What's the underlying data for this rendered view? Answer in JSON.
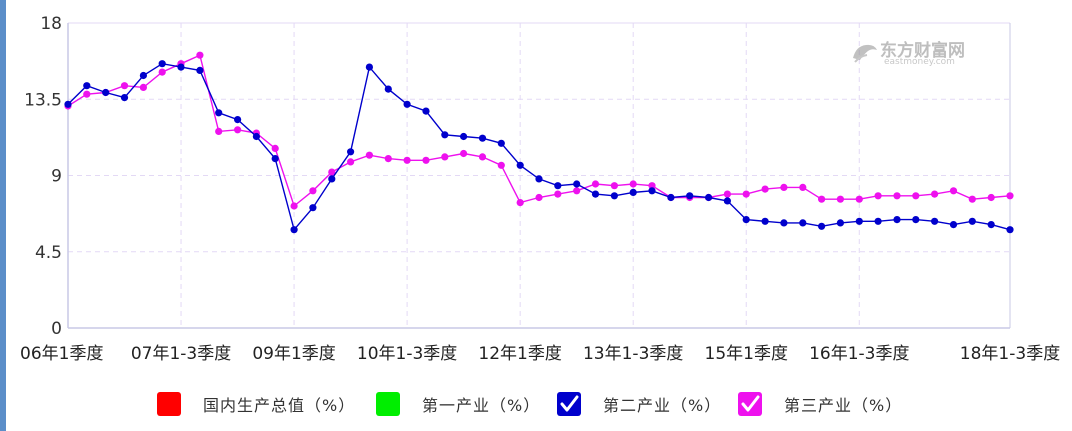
{
  "colors": {
    "gdp": "#ff0000",
    "primary": "#00ee00",
    "secondary": "#0000cc",
    "tertiary": "#ee11ee",
    "grid": "#e3d9f5",
    "axis": "#c9c9e6"
  },
  "watermark": {
    "brand_cn": "东方财富网",
    "brand_en": "eastmoney.com",
    "icon": "eastmoney-bull-logo-icon"
  },
  "legend": [
    {
      "label": "国内生产总值（%）",
      "color": "#ff0000",
      "checked": false
    },
    {
      "label": "第一产业（%）",
      "color": "#00ee00",
      "checked": false
    },
    {
      "label": "第二产业（%）",
      "color": "#0000cc",
      "checked": true
    },
    {
      "label": "第三产业（%）",
      "color": "#ee11ee",
      "checked": true
    }
  ],
  "chart_data": {
    "type": "line",
    "title": "",
    "xlabel": "",
    "ylabel": "",
    "ylim": [
      0,
      18
    ],
    "yticks": [
      "0",
      "4.5",
      "9",
      "13.5",
      "18"
    ],
    "x_tick_labels": [
      {
        "label": "06年1季度",
        "index": 0
      },
      {
        "label": "07年1-3季度",
        "index": 6
      },
      {
        "label": "09年1季度",
        "index": 12
      },
      {
        "label": "10年1-3季度",
        "index": 18
      },
      {
        "label": "12年1季度",
        "index": 24
      },
      {
        "label": "13年1-3季度",
        "index": 30
      },
      {
        "label": "15年1季度",
        "index": 36
      },
      {
        "label": "16年1-3季度",
        "index": 42
      },
      {
        "label": "18年1-3季度",
        "index": 50
      }
    ],
    "grid": true,
    "legend_position": "bottom",
    "series": [
      {
        "name": "第二产业（%）",
        "color": "#0000cc",
        "values": [
          13.2,
          14.3,
          13.9,
          13.6,
          14.9,
          15.6,
          15.4,
          15.2,
          12.7,
          12.3,
          11.3,
          10.0,
          5.8,
          7.1,
          8.8,
          10.4,
          15.4,
          14.1,
          13.2,
          12.8,
          11.4,
          11.3,
          11.2,
          10.9,
          9.6,
          8.8,
          8.4,
          8.5,
          7.9,
          7.8,
          8.0,
          8.1,
          7.7,
          7.8,
          7.7,
          7.5,
          6.4,
          6.3,
          6.2,
          6.2,
          6.0,
          6.2,
          6.3,
          6.3,
          6.4,
          6.4,
          6.3,
          6.1,
          6.3,
          6.1,
          5.8
        ]
      },
      {
        "name": "第三产业（%）",
        "color": "#ee11ee",
        "values": [
          13.1,
          13.8,
          13.9,
          14.3,
          14.2,
          15.1,
          15.6,
          16.1,
          11.6,
          11.7,
          11.5,
          10.6,
          7.2,
          8.1,
          9.2,
          9.8,
          10.2,
          10.0,
          9.9,
          9.9,
          10.1,
          10.3,
          10.1,
          9.6,
          7.4,
          7.7,
          7.9,
          8.1,
          8.5,
          8.4,
          8.5,
          8.4,
          7.7,
          7.7,
          7.7,
          7.9,
          7.9,
          8.2,
          8.3,
          8.3,
          7.6,
          7.6,
          7.6,
          7.8,
          7.8,
          7.8,
          7.9,
          8.1,
          7.6,
          7.7,
          7.8
        ]
      }
    ]
  }
}
